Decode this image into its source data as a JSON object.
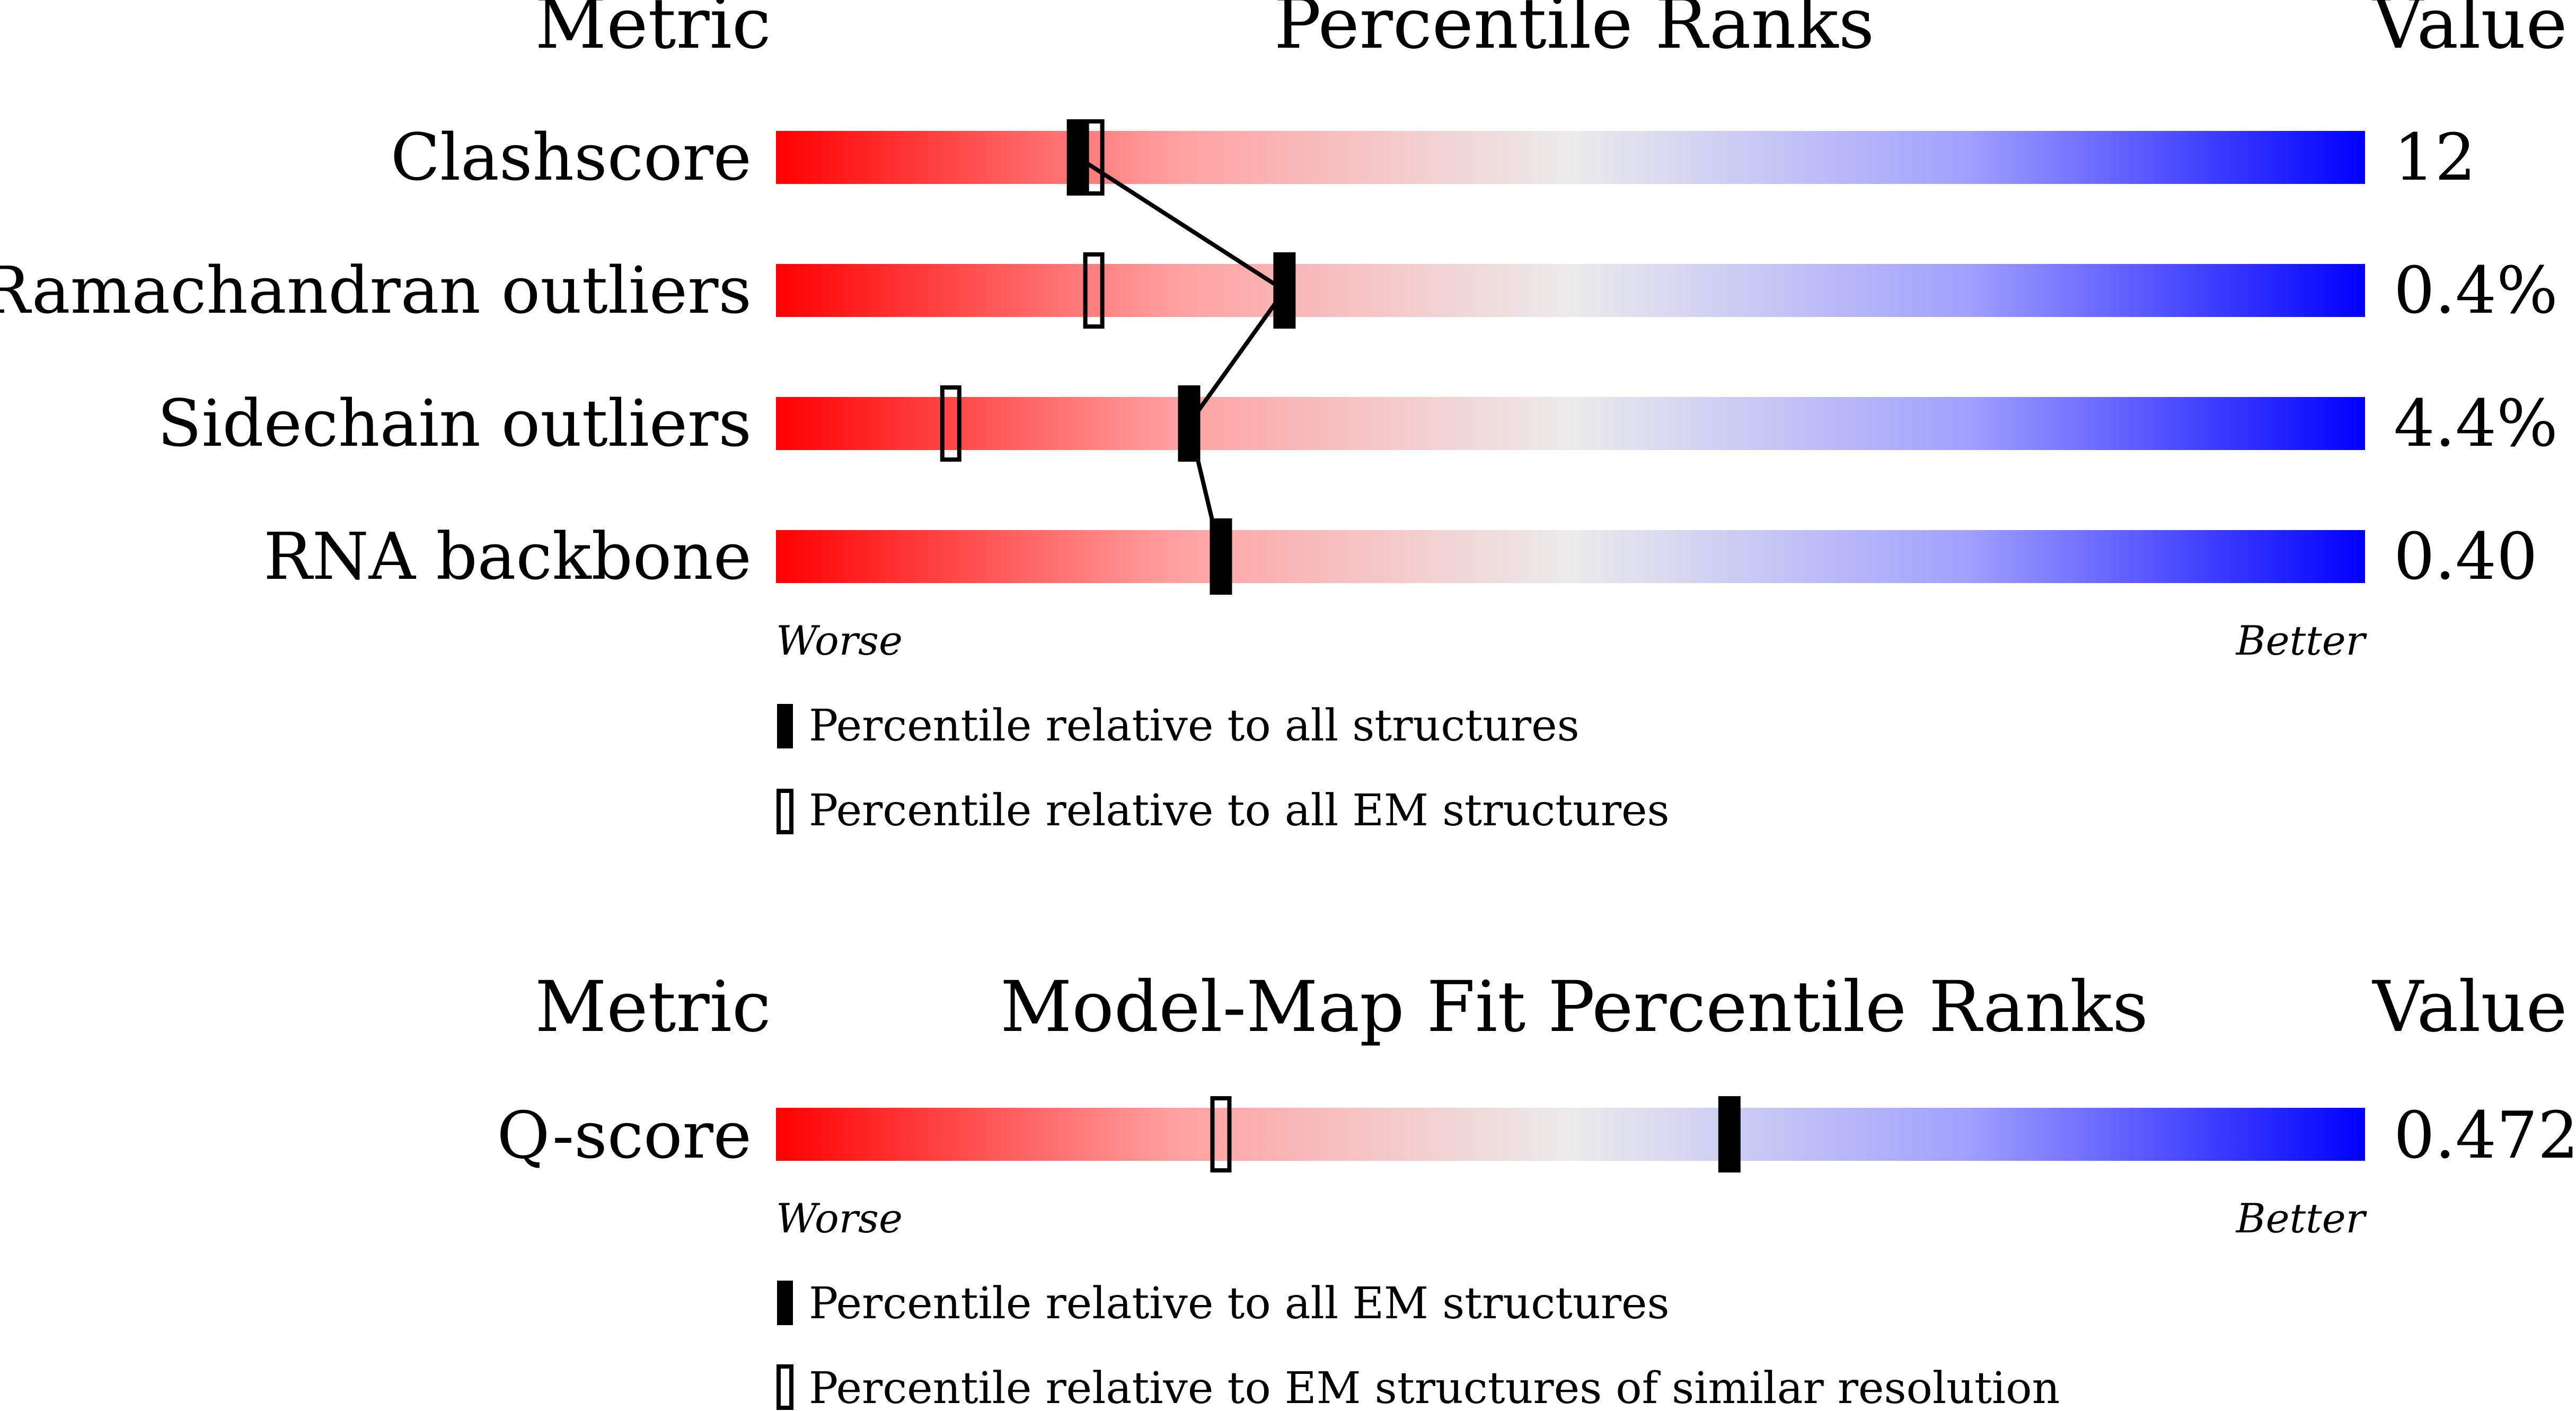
{
  "panels": [
    {
      "id": "validation",
      "header": {
        "metric": "Metric",
        "title": "Percentile Ranks",
        "value": "Value"
      },
      "rows": [
        {
          "label": "Clashscore",
          "value": "12"
        },
        {
          "label": "Ramachandran outliers",
          "value": "0.4%"
        },
        {
          "label": "Sidechain outliers",
          "value": "4.4%"
        },
        {
          "label": "RNA backbone",
          "value": "0.40"
        }
      ],
      "scale": {
        "worse": "Worse",
        "better": "Better"
      },
      "legend": [
        {
          "marker": "filled",
          "text": "Percentile relative to all structures"
        },
        {
          "marker": "open",
          "text": "Percentile relative to all EM structures"
        }
      ]
    },
    {
      "id": "model-map-fit",
      "header": {
        "metric": "Metric",
        "title": "Model-Map Fit Percentile Ranks",
        "value": "Value"
      },
      "rows": [
        {
          "label": "Q-score",
          "value": "0.472"
        }
      ],
      "scale": {
        "worse": "Worse",
        "better": "Better"
      },
      "legend": [
        {
          "marker": "filled",
          "text": "Percentile relative to all EM structures"
        },
        {
          "marker": "open",
          "text": "Percentile relative to EM structures of similar resolution"
        }
      ]
    }
  ],
  "chart_data": [
    {
      "type": "bar",
      "title": "Percentile Ranks",
      "xlim": [
        0,
        100
      ],
      "categories": [
        "Clashscore",
        "Ramachandran outliers",
        "Sidechain outliers",
        "RNA backbone"
      ],
      "values_text": [
        "12",
        "0.4%",
        "4.4%",
        "0.40"
      ],
      "series": [
        {
          "name": "Percentile relative to all structures",
          "marker": "filled",
          "values": [
            19,
            32,
            26,
            28
          ]
        },
        {
          "name": "Percentile relative to all EM structures",
          "marker": "open",
          "values": [
            20,
            20,
            11,
            null
          ]
        }
      ],
      "connect_series": 0,
      "colors": {
        "worse": "#ff0000",
        "mid": "#ebebeb",
        "better": "#0000ff"
      }
    },
    {
      "type": "bar",
      "title": "Model-Map Fit Percentile Ranks",
      "xlim": [
        0,
        100
      ],
      "categories": [
        "Q-score"
      ],
      "values_text": [
        "0.472"
      ],
      "series": [
        {
          "name": "Percentile relative to all EM structures",
          "marker": "filled",
          "values": [
            60
          ]
        },
        {
          "name": "Percentile relative to EM structures of similar resolution",
          "marker": "open",
          "values": [
            28
          ]
        }
      ],
      "colors": {
        "worse": "#ff0000",
        "mid": "#ebebeb",
        "better": "#0000ff"
      }
    }
  ]
}
